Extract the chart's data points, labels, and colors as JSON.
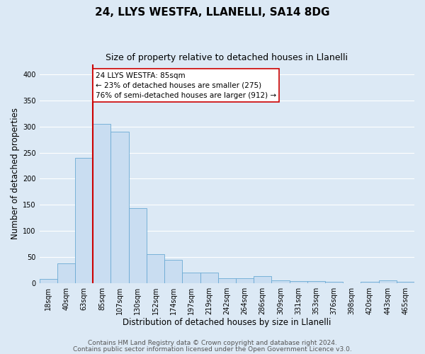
{
  "title": "24, LLYS WESTFA, LLANELLI, SA14 8DG",
  "subtitle": "Size of property relative to detached houses in Llanelli",
  "xlabel": "Distribution of detached houses by size in Llanelli",
  "ylabel": "Number of detached properties",
  "bar_labels": [
    "18sqm",
    "40sqm",
    "63sqm",
    "85sqm",
    "107sqm",
    "130sqm",
    "152sqm",
    "174sqm",
    "197sqm",
    "219sqm",
    "242sqm",
    "264sqm",
    "286sqm",
    "309sqm",
    "331sqm",
    "353sqm",
    "376sqm",
    "398sqm",
    "420sqm",
    "443sqm",
    "465sqm"
  ],
  "bar_values": [
    8,
    37,
    240,
    305,
    290,
    143,
    55,
    45,
    20,
    20,
    9,
    9,
    13,
    5,
    4,
    4,
    3,
    0,
    3,
    5,
    3
  ],
  "bar_color": "#c9ddf1",
  "bar_edgecolor": "#6aaad4",
  "vline_color": "#cc0000",
  "vline_index": 3,
  "annotation_text": "24 LLYS WESTFA: 85sqm\n← 23% of detached houses are smaller (275)\n76% of semi-detached houses are larger (912) →",
  "annotation_box_edgecolor": "#cc0000",
  "annotation_box_facecolor": "#ffffff",
  "ylim": [
    0,
    420
  ],
  "yticks": [
    0,
    50,
    100,
    150,
    200,
    250,
    300,
    350,
    400
  ],
  "footer1": "Contains HM Land Registry data © Crown copyright and database right 2024.",
  "footer2": "Contains public sector information licensed under the Open Government Licence v3.0.",
  "bg_color": "#dce9f5",
  "plot_bg_color": "#dce9f5",
  "title_fontsize": 11,
  "subtitle_fontsize": 9,
  "axis_label_fontsize": 8.5,
  "tick_fontsize": 7,
  "footer_fontsize": 6.5,
  "annotation_fontsize": 7.5
}
